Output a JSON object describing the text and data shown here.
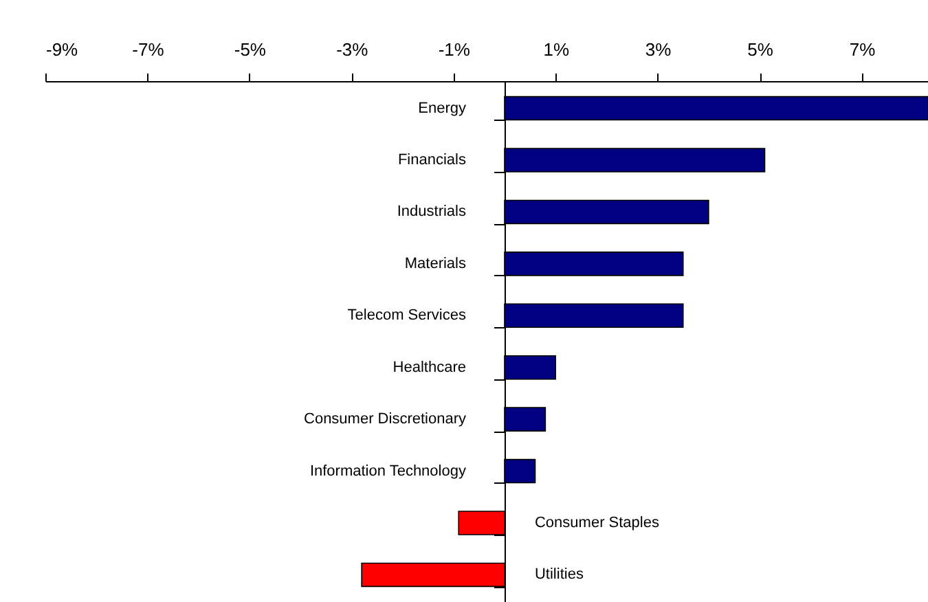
{
  "chart_data": {
    "type": "bar",
    "orientation": "horizontal",
    "categories": [
      "Energy",
      "Financials",
      "Industrials",
      "Materials",
      "Telecom Services",
      "Healthcare",
      "Consumer Discretionary",
      "Information Technology",
      "Consumer Staples",
      "Utilities"
    ],
    "values": [
      8.3,
      5.1,
      4.0,
      3.5,
      3.5,
      1.0,
      0.8,
      0.6,
      -0.9,
      -2.8
    ],
    "colors": [
      "#000080",
      "#000080",
      "#000080",
      "#000080",
      "#000080",
      "#000080",
      "#000080",
      "#000080",
      "#ff0000",
      "#ff0000"
    ],
    "xlim": [
      -9,
      8.3
    ],
    "xticks": [
      {
        "value": -9,
        "label": "-9%"
      },
      {
        "value": -7,
        "label": "-7%"
      },
      {
        "value": -5,
        "label": "-5%"
      },
      {
        "value": -3,
        "label": "-3%"
      },
      {
        "value": -1,
        "label": "-1%"
      },
      {
        "value": 1,
        "label": "1%"
      },
      {
        "value": 3,
        "label": "3%"
      },
      {
        "value": 5,
        "label": "5%"
      },
      {
        "value": 7,
        "label": "7%"
      }
    ],
    "grid": false,
    "legend": false
  }
}
